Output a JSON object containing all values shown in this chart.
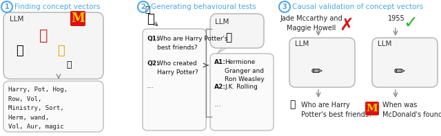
{
  "bg_color": "#ffffff",
  "circle_color": "#4da6e8",
  "section_labels": [
    "Finding concept vectors",
    "Generating behavioural tests",
    "Causal validation of concept vectors"
  ],
  "keyword_words": "Harry, Pot, Hog,\nRow, Vol,\nMinistry, Sort,\nHerm, wand,\nVol, Aur, magic",
  "q1_bold": "Q1:",
  "q1_text": " Who are Harry Potter's\n      best friends?",
  "q2_bold": "Q2:",
  "q2_text": " Who created\n      Harry Potter?",
  "a1_bold": "A1:",
  "a1_text": " Hermione\n      Granger and\n      Ron Weasley",
  "a2_bold": "A2:",
  "a2_text": " J.K. Rolling",
  "wrong_answer": "Jade Mccarthy and\nMaggie Howell",
  "right_answer": "1955",
  "q_bottom1": "Who are Harry\nPotter's best friends?",
  "q_bottom2": "When was\nMcDonald's founded?"
}
